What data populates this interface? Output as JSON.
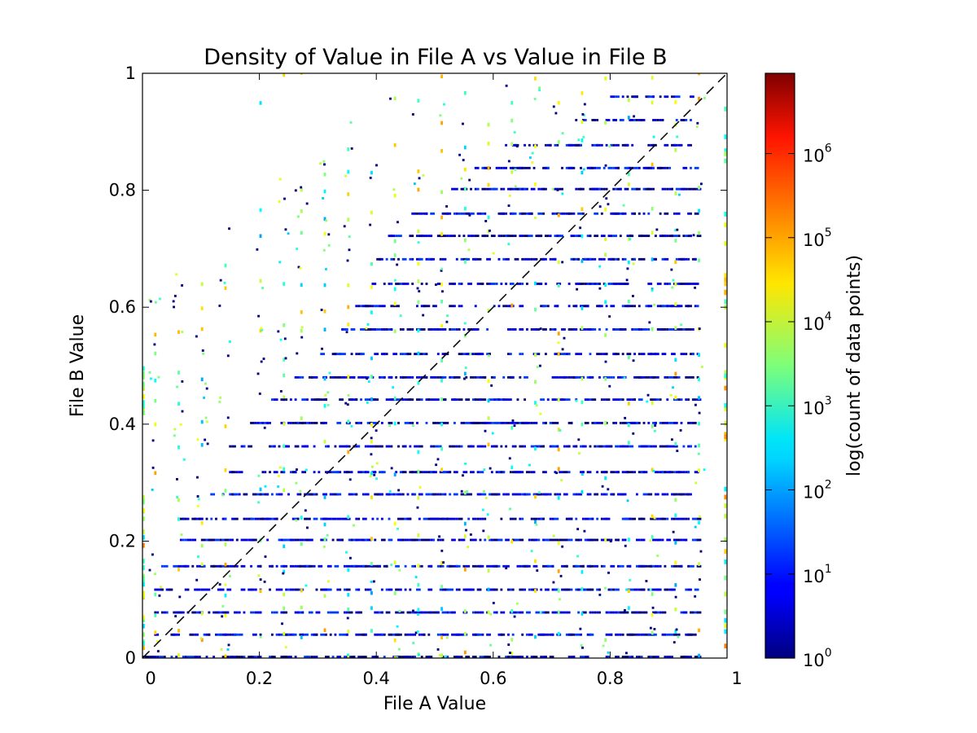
{
  "chart_data": {
    "type": "heatmap",
    "title": "Density of Value in File A vs Value in File B",
    "xlabel": "File A Value",
    "ylabel": "File B Value",
    "xlim": [
      0,
      1
    ],
    "ylim": [
      0,
      1
    ],
    "x_tick_labels": [
      "0",
      "0.2",
      "0.4",
      "0.6",
      "0.8",
      "1"
    ],
    "x_tick_values": [
      0,
      0.2,
      0.4,
      0.6,
      0.8,
      1
    ],
    "y_tick_labels": [
      "0",
      "0.2",
      "0.4",
      "0.6",
      "0.8",
      "1"
    ],
    "y_tick_values": [
      0,
      0.2,
      0.4,
      0.6,
      0.8,
      1
    ],
    "reference_line": {
      "style": "dashed",
      "color": "#000000",
      "from": [
        0,
        0
      ],
      "to": [
        1,
        1
      ]
    },
    "colorbar": {
      "label": "log(count of data points)",
      "scale": "log",
      "colormap": "jet",
      "range": [
        1,
        9000000
      ],
      "tick_labels": [
        {
          "value": 1,
          "base": "10",
          "exp": "0"
        },
        {
          "value": 10,
          "base": "10",
          "exp": "1"
        },
        {
          "value": 100,
          "base": "10",
          "exp": "2"
        },
        {
          "value": 1000,
          "base": "10",
          "exp": "3"
        },
        {
          "value": 10000,
          "base": "10",
          "exp": "4"
        },
        {
          "value": 100000,
          "base": "10",
          "exp": "5"
        },
        {
          "value": 1000000,
          "base": "10",
          "exp": "6"
        }
      ]
    },
    "bins": {
      "x_count": 250,
      "y_count": 250
    },
    "x_data_max": 0.95,
    "y_row_values": [
      0.0,
      0.038,
      0.076,
      0.115,
      0.155,
      0.2,
      0.236,
      0.278,
      0.316,
      0.36,
      0.4,
      0.44,
      0.478,
      0.518,
      0.56,
      0.6,
      0.638,
      0.68,
      0.72,
      0.758,
      0.8,
      0.836,
      0.875,
      0.918,
      0.958,
      1.0
    ],
    "row_x_start": [
      0.0,
      0.02,
      0.02,
      0.02,
      0.02,
      0.06,
      0.06,
      0.1,
      0.14,
      0.14,
      0.18,
      0.22,
      0.26,
      0.3,
      0.34,
      0.36,
      0.38,
      0.4,
      0.42,
      0.46,
      0.52,
      0.56,
      0.62,
      0.74,
      0.8,
      0.88
    ],
    "column_x_values": [
      0.02,
      0.06,
      0.1,
      0.14,
      0.2,
      0.24,
      0.27,
      0.31,
      0.35,
      0.39,
      0.43,
      0.47,
      0.51,
      0.55,
      0.59,
      0.63,
      0.67,
      0.71,
      0.75,
      0.79,
      0.83,
      0.87,
      0.91,
      0.95
    ]
  }
}
